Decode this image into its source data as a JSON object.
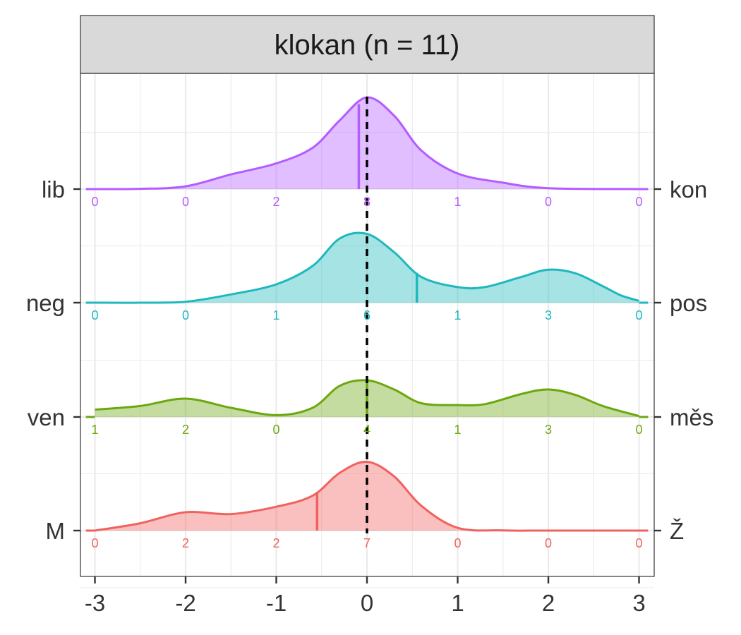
{
  "chart_data": {
    "type": "ridgeline-density",
    "title": "klokan (n = 11)",
    "xlim": [
      -3,
      3
    ],
    "x_ticks": [
      "-3",
      "-2",
      "-1",
      "0",
      "1",
      "2",
      "3"
    ],
    "reference_line_x": 0,
    "grid": true,
    "count_positions": [
      -3,
      -2,
      -1,
      0,
      1,
      2,
      3
    ],
    "series": [
      {
        "left_label": "lib",
        "right_label": "kon",
        "color": "#B45CFF",
        "counts": [
          0,
          0,
          2,
          8,
          1,
          0,
          0
        ],
        "mean": -0.09,
        "curve": [
          [
            -3,
            0
          ],
          [
            -2.5,
            0.003
          ],
          [
            -2,
            0.03
          ],
          [
            -1.5,
            0.16
          ],
          [
            -1,
            0.28
          ],
          [
            -0.6,
            0.45
          ],
          [
            -0.3,
            0.75
          ],
          [
            0,
            1.0
          ],
          [
            0.3,
            0.8
          ],
          [
            0.6,
            0.42
          ],
          [
            1,
            0.17
          ],
          [
            1.5,
            0.07
          ],
          [
            2,
            0.01
          ],
          [
            3,
            0
          ]
        ]
      },
      {
        "left_label": "neg",
        "right_label": "pos",
        "color": "#1FB8BD",
        "counts": [
          0,
          0,
          1,
          6,
          1,
          3,
          0
        ],
        "mean": 0.55,
        "curve": [
          [
            -3,
            0
          ],
          [
            -2.5,
            0
          ],
          [
            -2,
            0.01
          ],
          [
            -1.5,
            0.09
          ],
          [
            -1,
            0.2
          ],
          [
            -0.6,
            0.4
          ],
          [
            -0.3,
            0.7
          ],
          [
            0,
            0.75
          ],
          [
            0.3,
            0.55
          ],
          [
            0.6,
            0.28
          ],
          [
            1,
            0.17
          ],
          [
            1.3,
            0.17
          ],
          [
            1.7,
            0.28
          ],
          [
            2,
            0.36
          ],
          [
            2.3,
            0.32
          ],
          [
            2.6,
            0.18
          ],
          [
            2.8,
            0.08
          ],
          [
            3,
            0.02
          ]
        ]
      },
      {
        "left_label": "ven",
        "right_label": "měs",
        "color": "#6BA80F",
        "counts": [
          1,
          2,
          0,
          4,
          1,
          3,
          0
        ],
        "mean": 0.0,
        "curve": [
          [
            -3,
            0.08
          ],
          [
            -2.5,
            0.12
          ],
          [
            -2,
            0.2
          ],
          [
            -1.5,
            0.1
          ],
          [
            -1,
            0.02
          ],
          [
            -0.6,
            0.1
          ],
          [
            -0.3,
            0.34
          ],
          [
            0,
            0.4
          ],
          [
            0.3,
            0.3
          ],
          [
            0.6,
            0.15
          ],
          [
            1,
            0.13
          ],
          [
            1.3,
            0.14
          ],
          [
            1.7,
            0.25
          ],
          [
            2,
            0.3
          ],
          [
            2.3,
            0.24
          ],
          [
            2.6,
            0.12
          ],
          [
            3,
            0.01
          ]
        ]
      },
      {
        "left_label": "M",
        "right_label": "Ž",
        "color": "#F0625E",
        "counts": [
          0,
          2,
          2,
          7,
          0,
          0,
          0
        ],
        "mean": -0.55,
        "curve": [
          [
            -3,
            0
          ],
          [
            -2.5,
            0.08
          ],
          [
            -2,
            0.2
          ],
          [
            -1.5,
            0.18
          ],
          [
            -1,
            0.26
          ],
          [
            -0.6,
            0.38
          ],
          [
            -0.3,
            0.63
          ],
          [
            0,
            0.75
          ],
          [
            0.3,
            0.59
          ],
          [
            0.6,
            0.27
          ],
          [
            1,
            0.03
          ],
          [
            1.5,
            0.002
          ],
          [
            2,
            0
          ],
          [
            3,
            0
          ]
        ]
      }
    ]
  }
}
